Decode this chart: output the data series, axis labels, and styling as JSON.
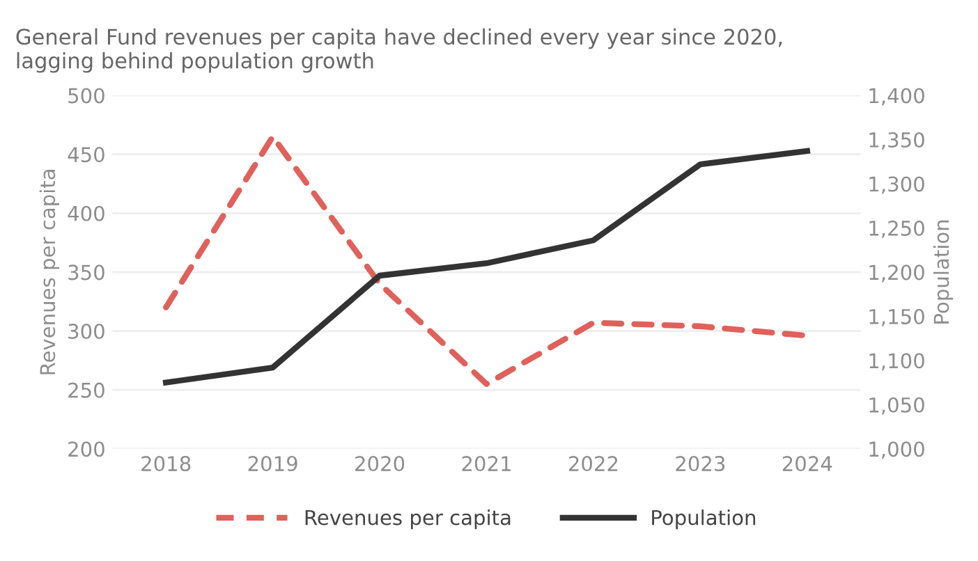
{
  "chart_data": {
    "type": "line",
    "title": "General Fund revenues per capita have declined every year since 2020,\nlagging behind population growth",
    "categories": [
      "2018",
      "2019",
      "2020",
      "2021",
      "2022",
      "2023",
      "2024"
    ],
    "series": [
      {
        "name": "Revenues per capita",
        "color": "#e0605a",
        "line_style": "dashed",
        "values": [
          320,
          465,
          340,
          255,
          307,
          304,
          296
        ]
      },
      {
        "name": "Population",
        "color": "#333333",
        "line_style": "solid",
        "axis": "y2",
        "values": [
          1075,
          1092,
          1196,
          1210,
          1236,
          1322,
          1337
        ]
      }
    ],
    "ylabel": "Revenues per capita",
    "y2label": "Population",
    "ylim": [
      200,
      500
    ],
    "yticks": [
      200,
      250,
      300,
      350,
      400,
      450,
      500
    ],
    "y2lim": [
      1000,
      1400
    ],
    "y2ticks": [
      {
        "value": 1000,
        "label": "1,000"
      },
      {
        "value": 1050,
        "label": "1,050"
      },
      {
        "value": 1100,
        "label": "1,100"
      },
      {
        "value": 1150,
        "label": "1,150"
      },
      {
        "value": 1200,
        "label": "1,200"
      },
      {
        "value": 1250,
        "label": "1,250"
      },
      {
        "value": 1300,
        "label": "1,300"
      },
      {
        "value": 1350,
        "label": "1,350"
      },
      {
        "value": 1400,
        "label": "1,400"
      }
    ],
    "grid": "y",
    "legend": "bottom",
    "marker": "none"
  }
}
